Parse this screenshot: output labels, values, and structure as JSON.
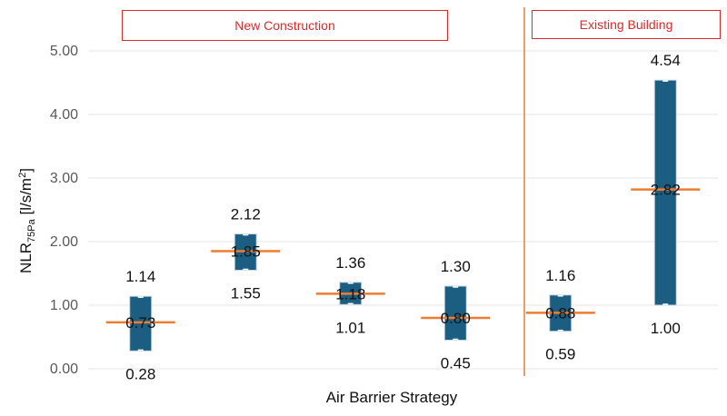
{
  "chart_data": {
    "type": "box",
    "xlabel": "Air Barrier Strategy",
    "ylabel": {
      "main": "NLR",
      "subscript": "75Pa",
      "unit": " [l/s/m",
      "exponent": "2",
      "close": "]"
    },
    "ylim": [
      0,
      5
    ],
    "yticks": [
      "0.00",
      "1.00",
      "2.00",
      "3.00",
      "4.00",
      "5.00"
    ],
    "grid": true,
    "groups": [
      {
        "label": "New Construction",
        "members": [
          0,
          1,
          2,
          3
        ]
      },
      {
        "label": "Existing Building",
        "members": [
          4,
          5
        ]
      }
    ],
    "series": [
      {
        "min": 0.28,
        "median": 0.73,
        "max": 1.14,
        "labels": {
          "min": "0.28",
          "median": "0.73",
          "max": "1.14"
        }
      },
      {
        "min": 1.55,
        "median": 1.85,
        "max": 2.12,
        "labels": {
          "min": "1.55",
          "median": "1.85",
          "max": "2.12"
        }
      },
      {
        "min": 1.01,
        "median": 1.18,
        "max": 1.36,
        "labels": {
          "min": "1.01",
          "median": "1.18",
          "max": "1.36"
        }
      },
      {
        "min": 0.45,
        "median": 0.8,
        "max": 1.3,
        "labels": {
          "min": "0.45",
          "median": "0.80",
          "max": "1.30"
        }
      },
      {
        "min": 0.59,
        "median": 0.88,
        "max": 1.16,
        "labels": {
          "min": "0.59",
          "median": "0.88",
          "max": "1.16"
        }
      },
      {
        "min": 1.0,
        "median": 2.82,
        "max": 4.54,
        "labels": {
          "min": "1.00",
          "median": "2.82",
          "max": "4.54"
        }
      }
    ],
    "colors": {
      "box": "#1b5e82",
      "median": "#ed7d31",
      "divider": "#ed7d31",
      "group_border": "#d92b2b",
      "grid": "#e6e6e6"
    }
  }
}
